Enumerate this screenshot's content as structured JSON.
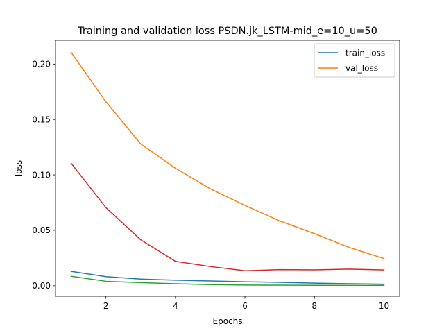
{
  "chart_data": {
    "type": "line",
    "title": "Training and validation loss PSDN.jk_LSTM-mid_e=10_u=50",
    "xlabel": "Epochs",
    "ylabel": "loss",
    "x": [
      1,
      2,
      3,
      4,
      5,
      6,
      7,
      8,
      9,
      10
    ],
    "xlim": [
      0.55,
      10.45
    ],
    "ylim": [
      -0.0095,
      0.2215
    ],
    "xticks": [
      2,
      4,
      6,
      8,
      10
    ],
    "yticks": [
      0.0,
      0.05,
      0.1,
      0.15,
      0.2
    ],
    "ytick_labels": [
      "0.00",
      "0.05",
      "0.10",
      "0.15",
      "0.20"
    ],
    "xtick_labels": [
      "2",
      "4",
      "6",
      "8",
      "10"
    ],
    "grid": false,
    "legend_position": "top-right",
    "series": [
      {
        "name": "train_loss",
        "color": "#1f77b4",
        "in_legend": true,
        "values": [
          0.013,
          0.0082,
          0.006,
          0.005,
          0.0043,
          0.0036,
          0.003,
          0.0023,
          0.0018,
          0.0014
        ]
      },
      {
        "name": "val_loss",
        "color": "#ff7f0e",
        "in_legend": true,
        "values": [
          0.2105,
          0.166,
          0.128,
          0.106,
          0.0875,
          0.0725,
          0.0585,
          0.047,
          0.0345,
          0.0245
        ]
      },
      {
        "name": "",
        "color": "#2ca02c",
        "in_legend": false,
        "values": [
          0.0085,
          0.004,
          0.0028,
          0.0018,
          0.001,
          0.0006,
          0.0005,
          0.0004,
          0.0004,
          0.0004
        ]
      },
      {
        "name": "",
        "color": "#d62728",
        "in_legend": false,
        "values": [
          0.1105,
          0.0705,
          0.0415,
          0.022,
          0.0173,
          0.0135,
          0.0145,
          0.0143,
          0.015,
          0.0142
        ]
      }
    ]
  }
}
